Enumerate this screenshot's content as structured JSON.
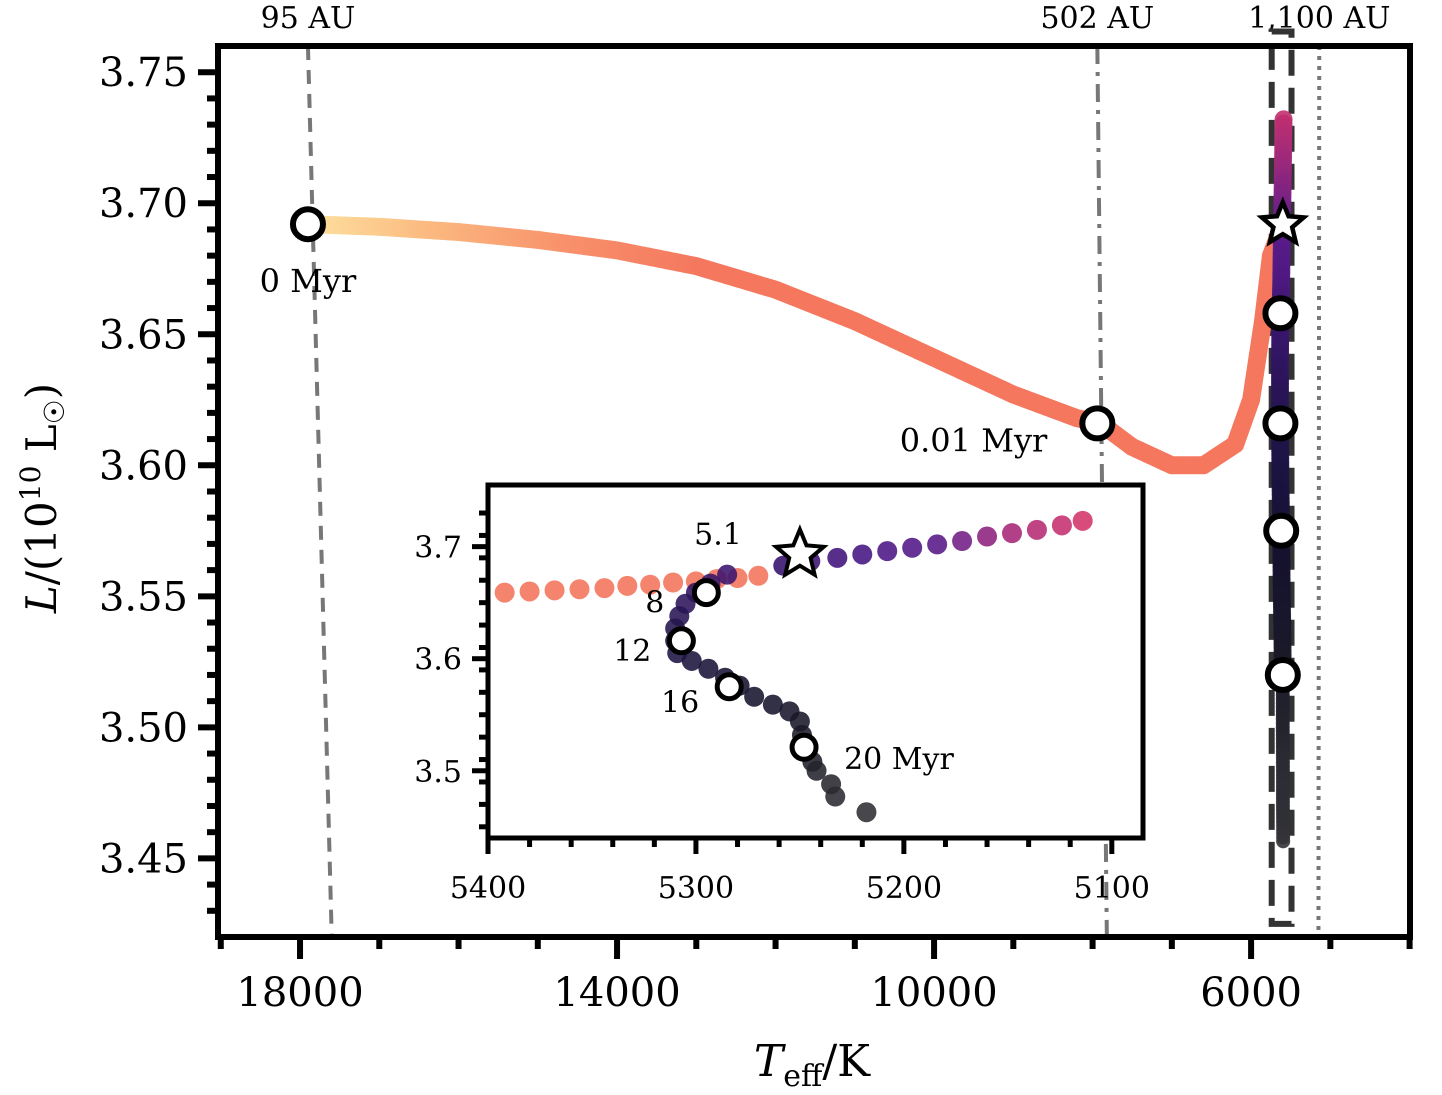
{
  "chart_data": {
    "type": "scatter",
    "title": "",
    "xlabel": "T_eff/K",
    "xlabel_main": "T",
    "xlabel_sub": "eff",
    "xlabel_unit": "/K",
    "ylabel": "L/(10^10 L_sun)",
    "ylabel_parts": {
      "pre": "L/(10",
      "sup": "10",
      "post": " L",
      "sun": "☉",
      "close": ")"
    },
    "xlim": [
      19035,
      3995
    ],
    "ylim": [
      3.42,
      3.76
    ],
    "x_ticks": [
      18000,
      14000,
      10000,
      6000
    ],
    "x_tick_labels": [
      "18000",
      "14000",
      "10000",
      "6000"
    ],
    "y_ticks": [
      3.45,
      3.5,
      3.55,
      3.6,
      3.65,
      3.7,
      3.75
    ],
    "y_tick_labels": [
      "3.45",
      "3.50",
      "3.55",
      "3.60",
      "3.65",
      "3.70",
      "3.75"
    ],
    "grid": false,
    "vertical_lines": [
      {
        "label": "95 AU",
        "style": "dashed",
        "x_top": 17900,
        "x_bottom": 17600,
        "color": "#777777"
      },
      {
        "label": "502 AU",
        "style": "dashdot",
        "x_top": 7940,
        "x_bottom": 7820,
        "color": "#777777"
      },
      {
        "label": "1,100 AU",
        "style": "dotted",
        "x_top": 5140,
        "x_bottom": 5150,
        "color": "#777777"
      }
    ],
    "track": {
      "name": "evolutionary track",
      "points": [
        [
          17900,
          3.692
        ],
        [
          17000,
          3.691
        ],
        [
          16000,
          3.689
        ],
        [
          15000,
          3.686
        ],
        [
          14000,
          3.682
        ],
        [
          13000,
          3.676
        ],
        [
          12000,
          3.667
        ],
        [
          11000,
          3.655
        ],
        [
          10000,
          3.641
        ],
        [
          9000,
          3.627
        ],
        [
          8200,
          3.618
        ],
        [
          7900,
          3.616
        ],
        [
          7500,
          3.607
        ],
        [
          7000,
          3.6
        ],
        [
          6600,
          3.6
        ],
        [
          6200,
          3.608
        ],
        [
          6000,
          3.625
        ],
        [
          5850,
          3.655
        ],
        [
          5750,
          3.68
        ],
        [
          5600,
          3.692
        ]
      ],
      "colormap": [
        "#fde3a0",
        "#fbb77e",
        "#f8906b",
        "#f4775e"
      ]
    },
    "late_track": {
      "points": [
        [
          5590,
          3.732
        ],
        [
          5600,
          3.71
        ],
        [
          5610,
          3.692
        ],
        [
          5620,
          3.67
        ],
        [
          5630,
          3.658
        ],
        [
          5635,
          3.64
        ],
        [
          5635,
          3.616
        ],
        [
          5630,
          3.595
        ],
        [
          5620,
          3.575
        ],
        [
          5615,
          3.555
        ],
        [
          5605,
          3.535
        ],
        [
          5600,
          3.52
        ],
        [
          5600,
          3.5
        ],
        [
          5598,
          3.485
        ],
        [
          5598,
          3.47
        ],
        [
          5595,
          3.455
        ]
      ],
      "colors": [
        "#c2306f",
        "#5c1d8c",
        "#3b1570",
        "#1f1448",
        "#15122f",
        "#1a1a28",
        "#2a2a33",
        "#333338"
      ]
    },
    "markers": [
      {
        "type": "circle",
        "x": 17900,
        "y": 3.692,
        "label": "0 Myr"
      },
      {
        "type": "circle",
        "x": 7940,
        "y": 3.616,
        "label": "0.01 Myr"
      },
      {
        "type": "star",
        "x": 5600,
        "y": 3.692,
        "label": ""
      },
      {
        "type": "circle",
        "x": 5630,
        "y": 3.658,
        "label": ""
      },
      {
        "type": "circle",
        "x": 5630,
        "y": 3.616,
        "label": ""
      },
      {
        "type": "circle",
        "x": 5620,
        "y": 3.575,
        "label": ""
      },
      {
        "type": "circle",
        "x": 5600,
        "y": 3.52,
        "label": ""
      }
    ],
    "zoom_box": {
      "x": [
        5740,
        5490
      ],
      "y": [
        3.425,
        3.735
      ],
      "style": "dashed"
    },
    "inset": {
      "type": "scatter",
      "xlim": [
        5400,
        5085
      ],
      "ylim": [
        3.44,
        3.755
      ],
      "x_ticks": [
        5400,
        5300,
        5200,
        5100
      ],
      "x_tick_labels": [
        "5400",
        "5300",
        "5200",
        "5100"
      ],
      "y_ticks": [
        3.5,
        3.6,
        3.7
      ],
      "y_tick_labels": [
        "3.5",
        "3.6",
        "3.7"
      ],
      "orange_points": [
        [
          5392,
          3.659
        ],
        [
          5380,
          3.66
        ],
        [
          5368,
          3.661
        ],
        [
          5356,
          3.662
        ],
        [
          5344,
          3.663
        ],
        [
          5333,
          3.665
        ],
        [
          5322,
          3.666
        ],
        [
          5311,
          3.668
        ],
        [
          5300,
          3.669
        ],
        [
          5290,
          3.671
        ],
        [
          5280,
          3.672
        ],
        [
          5270,
          3.674
        ]
      ],
      "late_points": [
        [
          5258,
          3.683
        ],
        [
          5245,
          3.687
        ],
        [
          5232,
          3.69
        ],
        [
          5220,
          3.693
        ],
        [
          5208,
          3.696
        ],
        [
          5196,
          3.699
        ],
        [
          5184,
          3.702
        ],
        [
          5172,
          3.705
        ],
        [
          5160,
          3.709
        ],
        [
          5148,
          3.712
        ],
        [
          5136,
          3.715
        ],
        [
          5124,
          3.719
        ],
        [
          5114,
          3.723
        ],
        [
          5285,
          3.675
        ],
        [
          5293,
          3.667
        ],
        [
          5300,
          3.659
        ],
        [
          5305,
          3.649
        ],
        [
          5308,
          3.638
        ],
        [
          5310,
          3.627
        ],
        [
          5310,
          3.616
        ],
        [
          5309,
          3.605
        ],
        [
          5302,
          3.598
        ],
        [
          5294,
          3.591
        ],
        [
          5286,
          3.583
        ],
        [
          5279,
          3.576
        ],
        [
          5272,
          3.566
        ],
        [
          5263,
          3.559
        ],
        [
          5255,
          3.553
        ],
        [
          5250,
          3.544
        ],
        [
          5249,
          3.532
        ],
        [
          5248,
          3.52
        ],
        [
          5244,
          3.508
        ],
        [
          5242,
          3.5
        ],
        [
          5235,
          3.488
        ],
        [
          5233,
          3.477
        ],
        [
          5218,
          3.463
        ]
      ],
      "markers": [
        {
          "type": "star",
          "x": 5250,
          "y": 3.693,
          "label": "5.1"
        },
        {
          "type": "circle",
          "x": 5295,
          "y": 3.659,
          "label": "8"
        },
        {
          "type": "circle",
          "x": 5307,
          "y": 3.616,
          "label": "12"
        },
        {
          "type": "circle",
          "x": 5284,
          "y": 3.575,
          "label": "16"
        },
        {
          "type": "circle",
          "x": 5248,
          "y": 3.521,
          "label": "20 Myr"
        }
      ]
    }
  }
}
